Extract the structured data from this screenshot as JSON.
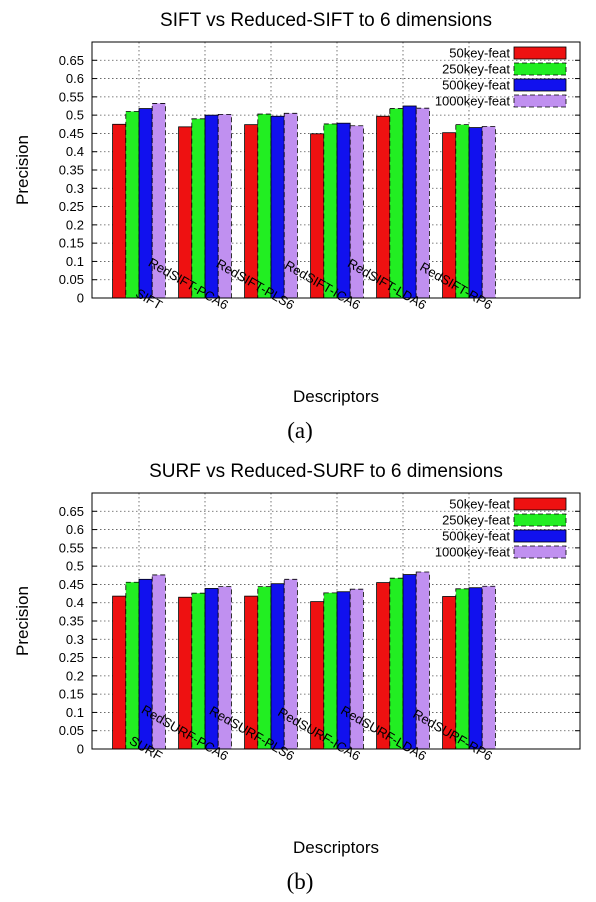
{
  "colors": {
    "50key-feat": "#ee1111",
    "250key-feat": "#22ee22",
    "500key-feat": "#1111ee",
    "1000key-feat": "#c090f0"
  },
  "chart_data": [
    {
      "type": "bar",
      "title": "SIFT vs Reduced-SIFT to 6 dimensions",
      "xlabel": "Descriptors",
      "ylabel": "Precision",
      "caption": "(a)",
      "ylim": [
        0,
        0.7
      ],
      "yticks": [
        "0",
        "0.05",
        "0.1",
        "0.15",
        "0.2",
        "0.25",
        "0.3",
        "0.35",
        "0.4",
        "0.45",
        "0.5",
        "0.55",
        "0.6",
        "0.65"
      ],
      "grid": true,
      "legend_position": "top-right",
      "categories": [
        "SIFT",
        "RedSIFT-PCA6",
        "RedSIFT-PLS6",
        "RedSIFT-ICA6",
        "RedSIFT-LDA6",
        "RedSIFT-RP6"
      ],
      "series": [
        {
          "name": "50key-feat",
          "values": [
            0.475,
            0.468,
            0.474,
            0.449,
            0.497,
            0.452
          ]
        },
        {
          "name": "250key-feat",
          "values": [
            0.51,
            0.49,
            0.503,
            0.476,
            0.518,
            0.474
          ]
        },
        {
          "name": "500key-feat",
          "values": [
            0.518,
            0.5,
            0.497,
            0.478,
            0.525,
            0.466
          ]
        },
        {
          "name": "1000key-feat",
          "values": [
            0.532,
            0.502,
            0.505,
            0.471,
            0.519,
            0.469
          ]
        }
      ]
    },
    {
      "type": "bar",
      "title": "SURF vs Reduced-SURF to 6 dimensions",
      "xlabel": "Descriptors",
      "ylabel": "Precision",
      "caption": "(b)",
      "ylim": [
        0,
        0.7
      ],
      "yticks": [
        "0",
        "0.05",
        "0.1",
        "0.15",
        "0.2",
        "0.25",
        "0.3",
        "0.35",
        "0.4",
        "0.45",
        "0.5",
        "0.55",
        "0.6",
        "0.65"
      ],
      "grid": true,
      "legend_position": "top-right",
      "categories": [
        "SURF",
        "RedSURF-PCA6",
        "RedSURF-PLS6",
        "RedSURF-ICA6",
        "RedSURF-LDA6",
        "RedSURF-RP6"
      ],
      "series": [
        {
          "name": "50key-feat",
          "values": [
            0.418,
            0.415,
            0.418,
            0.403,
            0.455,
            0.417
          ]
        },
        {
          "name": "250key-feat",
          "values": [
            0.456,
            0.426,
            0.444,
            0.427,
            0.467,
            0.438
          ]
        },
        {
          "name": "500key-feat",
          "values": [
            0.464,
            0.439,
            0.452,
            0.43,
            0.477,
            0.441
          ]
        },
        {
          "name": "1000key-feat",
          "values": [
            0.476,
            0.444,
            0.464,
            0.437,
            0.484,
            0.445
          ]
        }
      ]
    }
  ]
}
